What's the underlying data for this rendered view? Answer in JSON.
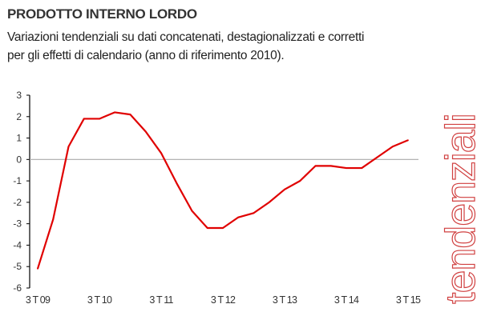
{
  "header": {
    "title": "PRODOTTO INTERNO LORDO",
    "subtitle_line1": "Variazioni tendenziali su dati concatenati, destagionalizzati e corretti",
    "subtitle_line2": "per gli effetti di calendario (anno di riferimento 2010)."
  },
  "side_label": "tendenziali",
  "chart_data": {
    "type": "line",
    "title": "",
    "xlabel": "",
    "ylabel": "",
    "ylim": [
      -6,
      3
    ],
    "yticks": [
      3,
      2,
      1,
      0,
      -1,
      -2,
      -3,
      -4,
      -5,
      -6
    ],
    "xtick_labels": [
      "3 T 09",
      "3 T 10",
      "3 T 11",
      "3 T 12",
      "3 T 13",
      "3 T 14",
      "3 T 15"
    ],
    "x": [
      "3T09",
      "4T09",
      "1T10",
      "2T10",
      "3T10",
      "4T10",
      "1T11",
      "2T11",
      "3T11",
      "4T11",
      "1T12",
      "2T12",
      "3T12",
      "4T12",
      "1T13",
      "2T13",
      "3T13",
      "4T13",
      "1T14",
      "2T14",
      "3T14",
      "4T14",
      "1T15",
      "2T15",
      "3T15"
    ],
    "series": [
      {
        "values": [
          -5.1,
          -2.8,
          0.6,
          1.9,
          1.9,
          2.2,
          2.1,
          1.3,
          0.3,
          -1.1,
          -2.4,
          -3.2,
          -3.2,
          -2.7,
          -2.5,
          -2.0,
          -1.4,
          -1.0,
          -0.3,
          -0.3,
          -0.4,
          -0.4,
          0.1,
          0.6,
          0.9
        ]
      }
    ],
    "grid": false,
    "zero_line": true,
    "colors": {
      "line": "#e00000",
      "zero_line": "#aaaaaa",
      "axis": "#000000"
    }
  }
}
